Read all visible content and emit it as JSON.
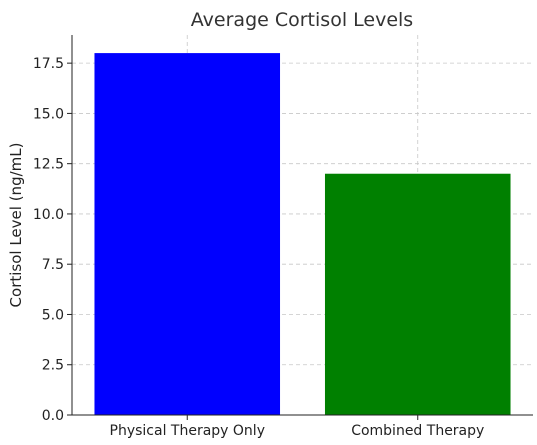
{
  "chart_data": {
    "type": "bar",
    "title": "Average Cortisol Levels",
    "xlabel": "",
    "ylabel": "Cortisol Level (ng/mL)",
    "categories": [
      "Physical Therapy Only",
      "Combined Therapy"
    ],
    "values": [
      18,
      12
    ],
    "colors": [
      "#0000ff",
      "#008000"
    ],
    "ylim": [
      0,
      18.9
    ],
    "yticks": [
      0,
      2.5,
      5,
      7.5,
      10,
      12.5,
      15,
      17.5
    ],
    "ytick_labels": [
      "0.0",
      "2.5",
      "5.0",
      "7.5",
      "10.0",
      "12.5",
      "15.0",
      "17.5"
    ],
    "grid": true,
    "legend": "none"
  }
}
